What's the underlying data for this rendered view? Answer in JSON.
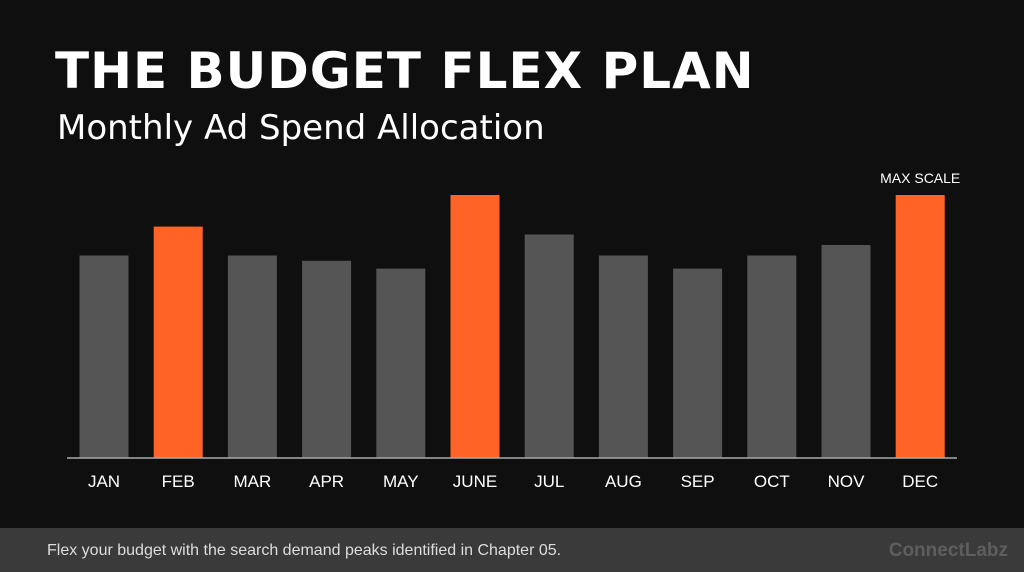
{
  "title": "THE BUDGET FLEX PLAN",
  "subtitle": "Monthly Ad Spend Allocation",
  "footer": {
    "caption": "Flex your budget with the search demand peaks identified in Chapter 05.",
    "brand": "ConnectLabz"
  },
  "colors": {
    "background": "#0f0f0f",
    "bar_default": "#555555",
    "bar_highlight": "#ff6426",
    "axis_line": "#aaaaaa",
    "text": "#ffffff",
    "footer_bg": "#3a3a3a"
  },
  "chart_data": {
    "type": "bar",
    "title": "THE BUDGET FLEX PLAN",
    "subtitle": "Monthly Ad Spend Allocation",
    "categories": [
      "JAN",
      "FEB",
      "MAR",
      "APR",
      "MAY",
      "JUNE",
      "JUL",
      "AUG",
      "SEP",
      "OCT",
      "NOV",
      "DEC"
    ],
    "values": [
      77,
      88,
      77,
      75,
      72,
      100,
      85,
      77,
      72,
      77,
      81,
      100
    ],
    "highlighted": [
      "FEB",
      "JUNE",
      "DEC"
    ],
    "ylim": [
      0,
      100
    ],
    "grid": false,
    "legend": "none",
    "annotations": [
      {
        "category": "DEC",
        "text": "MAX SCALE"
      }
    ]
  }
}
